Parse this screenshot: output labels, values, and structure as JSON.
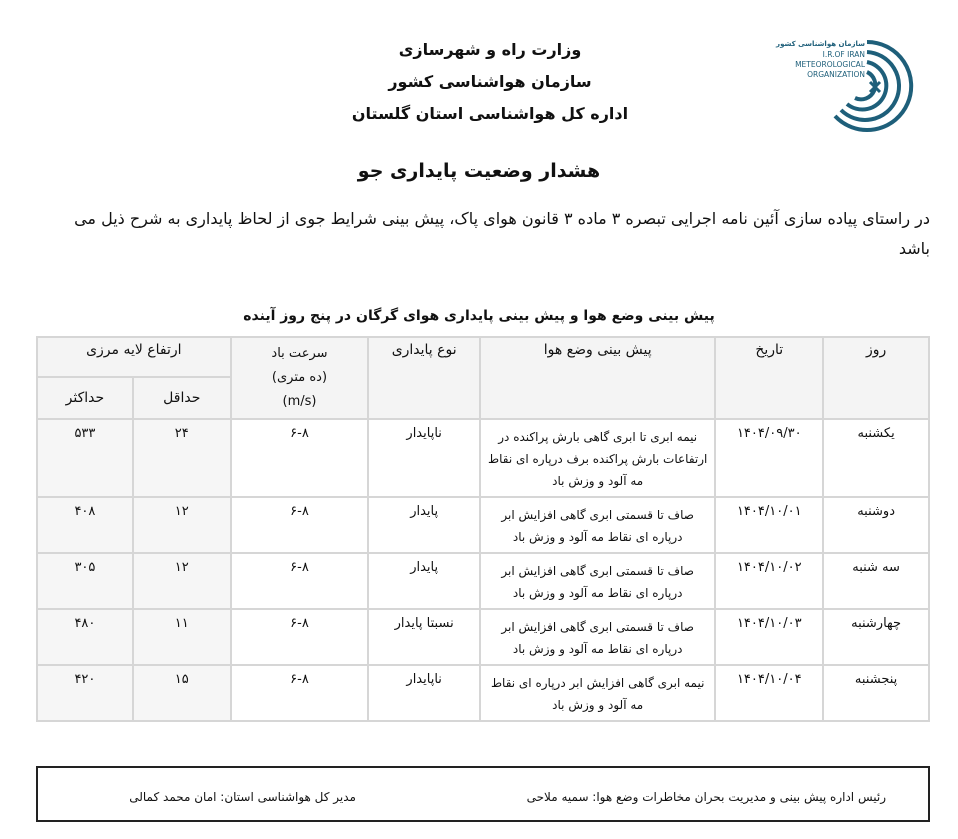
{
  "header": {
    "ministry": "وزارت راه و شهرسازی",
    "organization": "سازمان هواشناسی کشور",
    "department": "اداره کل هواشناسی استان گلستان",
    "logo_text": [
      "سازمان هواشناسی کشور",
      "I.R.OF IRAN",
      "METEOROLOGICAL",
      "ORGANIZATION"
    ],
    "logo_color": "#1e5f7a"
  },
  "title": "هشدار وضعیت پایداری جو",
  "intro": "در راستای پیاده سازی آئین نامه اجرایی تبصره ۳ ماده ۳ قانون هوای پاک، پیش بینی شرایط جوی از لحاظ پایداری به شرح ذیل می باشد",
  "table": {
    "title": "پیش بینی وضع هوا و پیش بینی پایداری هوای گرگان در پنج روز آینده",
    "headers": {
      "day": "روز",
      "date": "تاریخ",
      "forecast": "پیش بینی وضع هوا",
      "stability": "نوع پایداری",
      "wind_line1": "سرعت باد",
      "wind_line2": "(ده متری)",
      "wind_line3": "(m/s)",
      "boundary": "ارتفاع لایه مرزی",
      "min": "حداقل",
      "max": "حداکثر"
    },
    "rows": [
      {
        "day": "یکشنبه",
        "date": "۱۴۰۴/۰۹/۳۰",
        "forecast": "نیمه ابری تا ابری گاهی بارش پراکنده در ارتفاعات بارش پراکنده برف درپاره ای نقاط مه آلود و وزش باد",
        "stability": "ناپایدار",
        "wind": "۶-۸",
        "min": "۲۴",
        "max": "۵۳۳"
      },
      {
        "day": "دوشنبه",
        "date": "۱۴۰۴/۱۰/۰۱",
        "forecast": "صاف تا قسمتی ابری گاهی افزایش ابر درپاره ای نقاط مه آلود و وزش باد",
        "stability": "پایدار",
        "wind": "۶-۸",
        "min": "۱۲",
        "max": "۴۰۸"
      },
      {
        "day": "سه شنبه",
        "date": "۱۴۰۴/۱۰/۰۲",
        "forecast": "صاف تا قسمتی ابری گاهی افزایش ابر درپاره ای نقاط مه آلود و وزش باد",
        "stability": "پایدار",
        "wind": "۶-۸",
        "min": "۱۲",
        "max": "۳۰۵"
      },
      {
        "day": "چهارشنبه",
        "date": "۱۴۰۴/۱۰/۰۳",
        "forecast": "صاف تا قسمتی ابری گاهی افزایش ابر درپاره ای نقاط مه آلود و وزش باد",
        "stability": "نسبتا پایدار",
        "wind": "۶-۸",
        "min": "۱۱",
        "max": "۴۸۰"
      },
      {
        "day": "پنجشنبه",
        "date": "۱۴۰۴/۱۰/۰۴",
        "forecast": "نیمه ابری گاهی افزایش ابر درپاره ای نقاط مه آلود و وزش باد",
        "stability": "ناپایدار",
        "wind": "۶-۸",
        "min": "۱۵",
        "max": "۴۲۰"
      }
    ]
  },
  "footer": {
    "head_label": "رئیس اداره پیش بینی و مدیریت بحران مخاطرات وضع هوا:  سمیه  ملاحی",
    "director_label": "مدیر کل هواشناسی استان:  امان محمد کمالی"
  }
}
